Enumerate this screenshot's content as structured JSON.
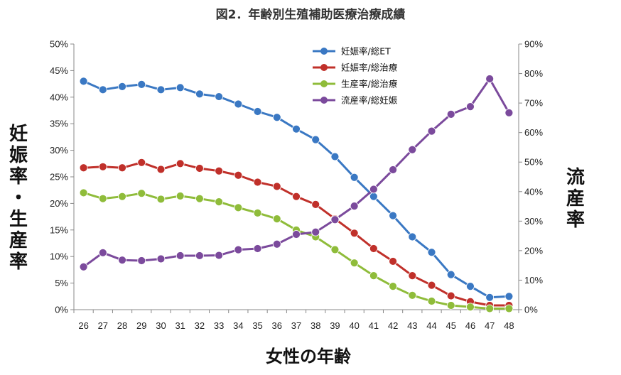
{
  "chart_data": {
    "type": "line",
    "title": "図2．年齢別生殖補助医療治療成績",
    "xlabel": "女性の年齢",
    "ylabel_left": "妊娠率・生産率",
    "ylabel_right": "流産率",
    "x": [
      26,
      27,
      28,
      29,
      30,
      31,
      32,
      33,
      34,
      35,
      36,
      37,
      38,
      39,
      40,
      41,
      42,
      43,
      44,
      45,
      46,
      47,
      48
    ],
    "y_left": {
      "range": [
        0,
        50
      ],
      "ticks": [
        "0%",
        "5%",
        "10%",
        "15%",
        "20%",
        "25%",
        "30%",
        "35%",
        "40%",
        "45%",
        "50%"
      ]
    },
    "y_right": {
      "range": [
        0,
        90
      ],
      "ticks": [
        "0%",
        "10%",
        "20%",
        "30%",
        "40%",
        "50%",
        "60%",
        "70%",
        "80%",
        "90%"
      ]
    },
    "grid": false,
    "legend_position": "top-center",
    "series": [
      {
        "name": "妊娠率/総ET",
        "axis": "left",
        "color": "#3a78c3",
        "values": [
          43.0,
          41.4,
          42.0,
          42.4,
          41.4,
          41.8,
          40.6,
          40.1,
          38.7,
          37.3,
          36.2,
          34.0,
          32.0,
          28.8,
          24.9,
          21.3,
          17.7,
          13.7,
          10.8,
          6.6,
          4.4,
          2.3,
          2.5
        ]
      },
      {
        "name": "妊娠率/総治療",
        "axis": "left",
        "color": "#c0302a",
        "values": [
          26.7,
          26.9,
          26.7,
          27.7,
          26.4,
          27.5,
          26.6,
          26.1,
          25.3,
          24.0,
          23.2,
          21.3,
          19.8,
          17.1,
          14.4,
          11.5,
          9.1,
          6.4,
          4.6,
          2.6,
          1.5,
          0.8,
          0.8
        ]
      },
      {
        "name": "生産率/総治療",
        "axis": "left",
        "color": "#8fbc3a",
        "values": [
          22.0,
          20.9,
          21.3,
          21.9,
          20.8,
          21.4,
          20.9,
          20.3,
          19.2,
          18.2,
          17.1,
          15.0,
          13.7,
          11.3,
          8.8,
          6.4,
          4.4,
          2.7,
          1.6,
          0.8,
          0.5,
          0.2,
          0.2
        ]
      },
      {
        "name": "流産率/総妊娠",
        "axis": "right",
        "color": "#7b4a9c",
        "values": [
          14.5,
          19.3,
          16.8,
          16.6,
          17.2,
          18.3,
          18.3,
          18.4,
          20.3,
          20.7,
          22.2,
          25.5,
          26.3,
          30.5,
          35.1,
          40.8,
          47.4,
          54.2,
          60.5,
          66.2,
          68.8,
          78.2,
          66.7
        ]
      }
    ]
  }
}
